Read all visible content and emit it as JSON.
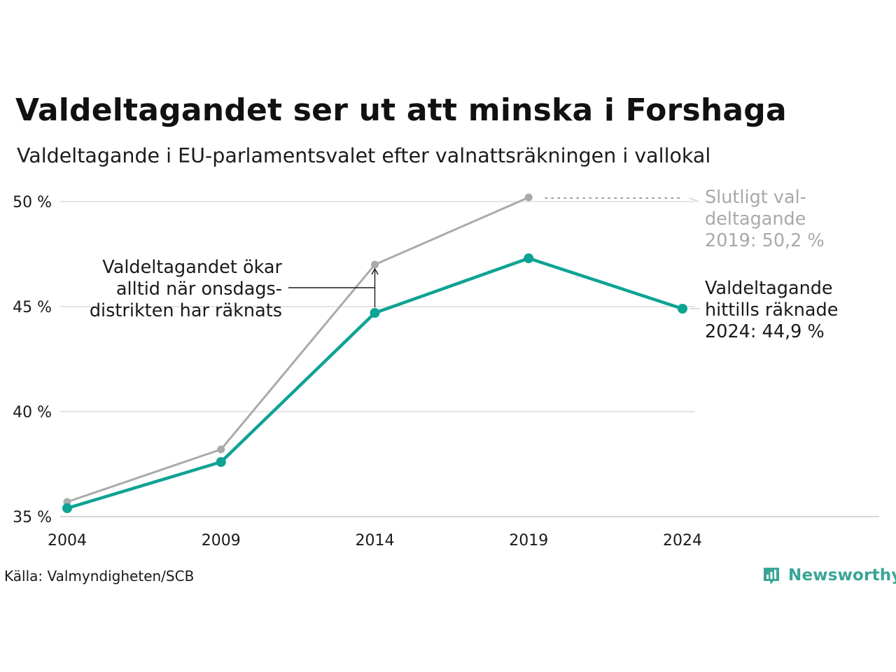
{
  "title": "Valdeltagandet ser ut att minska i Forshaga",
  "subtitle": "Valdeltagande i EU-parlamentsvalet efter valnattsräkningen i vallokal",
  "source": "Källa: Valmyndigheten/SCB",
  "logo": {
    "text": "Newsworthy",
    "icon": "newsworthy-bar-chart-icon",
    "color": "#3aa597"
  },
  "chart_data": {
    "type": "line",
    "x": [
      2004,
      2009,
      2014,
      2019,
      2024
    ],
    "series": [
      {
        "key": "final",
        "values": [
          35.7,
          38.2,
          47.0,
          50.2,
          null
        ],
        "color": "#aaaaaa"
      },
      {
        "key": "counted",
        "values": [
          35.4,
          37.6,
          44.7,
          47.3,
          44.9
        ],
        "color": "#0ea394"
      }
    ],
    "ylim": [
      35,
      50
    ],
    "yticks": [
      35,
      40,
      45,
      50
    ],
    "ytick_labels": [
      "35 %",
      "40 %",
      "45 %",
      "50 %"
    ],
    "xtick_labels": [
      "2004",
      "2009",
      "2014",
      "2019",
      "2024"
    ],
    "grid": true,
    "annotations": [
      {
        "key": "wednesday",
        "lines": [
          "Valdeltagandet ökar",
          "alltid när onsdags-",
          "distrikten har räknats"
        ],
        "color": "#1a1a1a"
      },
      {
        "key": "final2019",
        "lines": [
          "Slutligt val-",
          "deltagande",
          "2019: 50,2 %"
        ],
        "color": "#a9a9a9"
      },
      {
        "key": "counted2024",
        "lines": [
          "Valdeltagande",
          "hittills räknade",
          "2024: 44,9 %"
        ],
        "color": "#1a1a1a"
      }
    ]
  }
}
